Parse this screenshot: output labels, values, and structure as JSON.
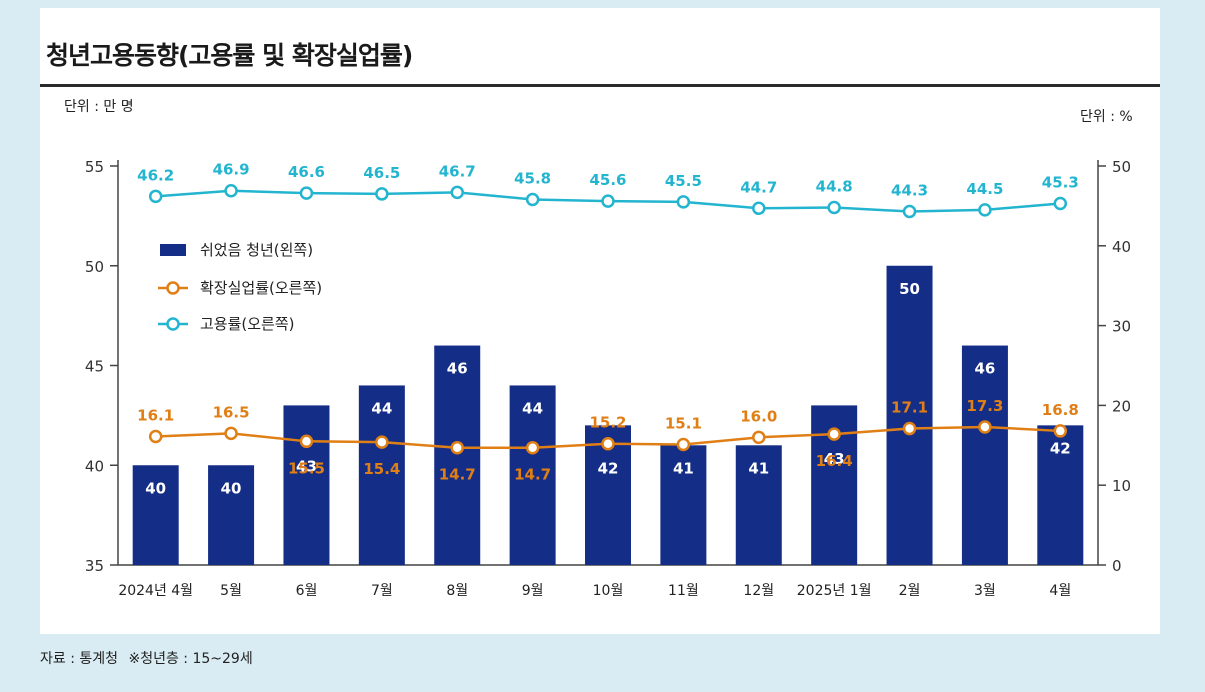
{
  "header": {
    "title": "청년고용동향(고용률 및 확장실업률)",
    "unit_left": "단위 : 만 명",
    "unit_right": "단위 : %"
  },
  "footer": {
    "source": "자료 : 통계청",
    "note": "※청년층 : 15~29세"
  },
  "colors": {
    "bar": "#142d86",
    "unemployment": "#e07f16",
    "employment": "#23b5cf",
    "background": "#d9ecf3"
  },
  "chart_data": {
    "type": "bar",
    "categories": [
      "2024년 4월",
      "5월",
      "6월",
      "7월",
      "8월",
      "9월",
      "10월",
      "11월",
      "12월",
      "2025년 1월",
      "2월",
      "3월",
      "4월"
    ],
    "series": [
      {
        "name": "쉬었음 청년(왼쪽)",
        "type": "bar",
        "axis": "left",
        "values": [
          40,
          40,
          43,
          44,
          46,
          44,
          42,
          41,
          41,
          43,
          50,
          46,
          42
        ],
        "labels": [
          "40",
          "40",
          "43",
          "44",
          "46",
          "44",
          "42",
          "41",
          "41",
          "43",
          "50",
          "46",
          "42"
        ]
      },
      {
        "name": "확장실업률(오른쪽)",
        "type": "line",
        "axis": "right",
        "values": [
          16.1,
          16.5,
          15.5,
          15.4,
          14.7,
          14.7,
          15.2,
          15.1,
          16.0,
          16.4,
          17.1,
          17.3,
          16.8
        ],
        "labels": [
          "16.1",
          "16.5",
          "15.5",
          "15.4",
          "14.7",
          "14.7",
          "15.2",
          "15.1",
          "16.0",
          "16.4",
          "17.1",
          "17.3",
          "16.8"
        ]
      },
      {
        "name": "고용률(오른쪽)",
        "type": "line",
        "axis": "right",
        "values": [
          46.2,
          46.9,
          46.6,
          46.5,
          46.7,
          45.8,
          45.6,
          45.5,
          44.7,
          44.8,
          44.3,
          44.5,
          45.3
        ],
        "labels": [
          "46.2",
          "46.9",
          "46.6",
          "46.5",
          "46.7",
          "45.8",
          "45.6",
          "45.5",
          "44.7",
          "44.8",
          "44.3",
          "44.5",
          "45.3"
        ]
      }
    ],
    "y_left": {
      "min": 35,
      "max": 55,
      "ticks": [
        "35",
        "40",
        "45",
        "50",
        "55"
      ],
      "tick_values": [
        35,
        40,
        45,
        50,
        55
      ]
    },
    "y_right": {
      "min": 0,
      "max": 50,
      "ticks": [
        "0",
        "10",
        "20",
        "30",
        "40",
        "50"
      ],
      "tick_values": [
        0,
        10,
        20,
        30,
        40,
        50
      ]
    },
    "legend_position": "upper-left",
    "grid": false
  }
}
